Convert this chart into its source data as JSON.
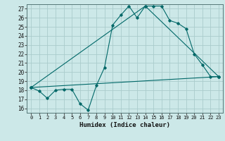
{
  "xlabel": "Humidex (Indice chaleur)",
  "bg_color": "#cce8e8",
  "grid_color": "#aacccc",
  "line_color": "#006868",
  "ylim": [
    15.5,
    27.5
  ],
  "xlim": [
    -0.5,
    23.5
  ],
  "yticks": [
    16,
    17,
    18,
    19,
    20,
    21,
    22,
    23,
    24,
    25,
    26,
    27
  ],
  "xticks": [
    0,
    1,
    2,
    3,
    4,
    5,
    6,
    7,
    8,
    9,
    10,
    11,
    12,
    13,
    14,
    15,
    16,
    17,
    18,
    19,
    20,
    21,
    22,
    23
  ],
  "line1_x": [
    0,
    1,
    2,
    3,
    4,
    5,
    6,
    7,
    8,
    9,
    10,
    11,
    12,
    13,
    14,
    15,
    16,
    17,
    18,
    19,
    20,
    21,
    22,
    23
  ],
  "line1_y": [
    18.3,
    17.9,
    17.1,
    18.0,
    18.1,
    18.1,
    16.5,
    15.8,
    18.5,
    20.5,
    25.2,
    26.3,
    27.3,
    26.0,
    27.3,
    27.3,
    27.3,
    25.7,
    25.4,
    24.8,
    22.0,
    20.8,
    19.5,
    19.5
  ],
  "line2_x": [
    0,
    23
  ],
  "line2_y": [
    18.3,
    19.5
  ],
  "line3_x": [
    0,
    14,
    23
  ],
  "line3_y": [
    18.3,
    27.3,
    19.5
  ]
}
